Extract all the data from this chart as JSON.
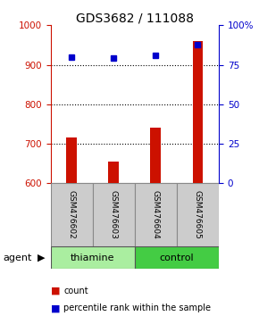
{
  "title": "GDS3682 / 111088",
  "samples": [
    "GSM476602",
    "GSM476603",
    "GSM476604",
    "GSM476605"
  ],
  "counts": [
    715,
    655,
    740,
    960
  ],
  "percentiles": [
    80,
    79,
    81,
    88
  ],
  "ylim_left": [
    600,
    1000
  ],
  "ylim_right": [
    0,
    100
  ],
  "yticks_left": [
    600,
    700,
    800,
    900,
    1000
  ],
  "yticks_right": [
    0,
    25,
    50,
    75,
    100
  ],
  "yticklabels_right": [
    "0",
    "25",
    "50",
    "75",
    "100%"
  ],
  "bar_color": "#cc1100",
  "dot_color": "#0000cc",
  "groups": [
    {
      "label": "thiamine",
      "indices": [
        0,
        1
      ],
      "color": "#aaeea0"
    },
    {
      "label": "control",
      "indices": [
        2,
        3
      ],
      "color": "#44cc44"
    }
  ],
  "group_label": "agent",
  "legend_items": [
    {
      "label": "count",
      "color": "#cc1100"
    },
    {
      "label": "percentile rank within the sample",
      "color": "#0000cc"
    }
  ],
  "tick_label_color_left": "#cc1100",
  "tick_label_color_right": "#0000cc",
  "sample_box_color": "#cccccc",
  "bar_width": 0.25,
  "title_fontsize": 10
}
